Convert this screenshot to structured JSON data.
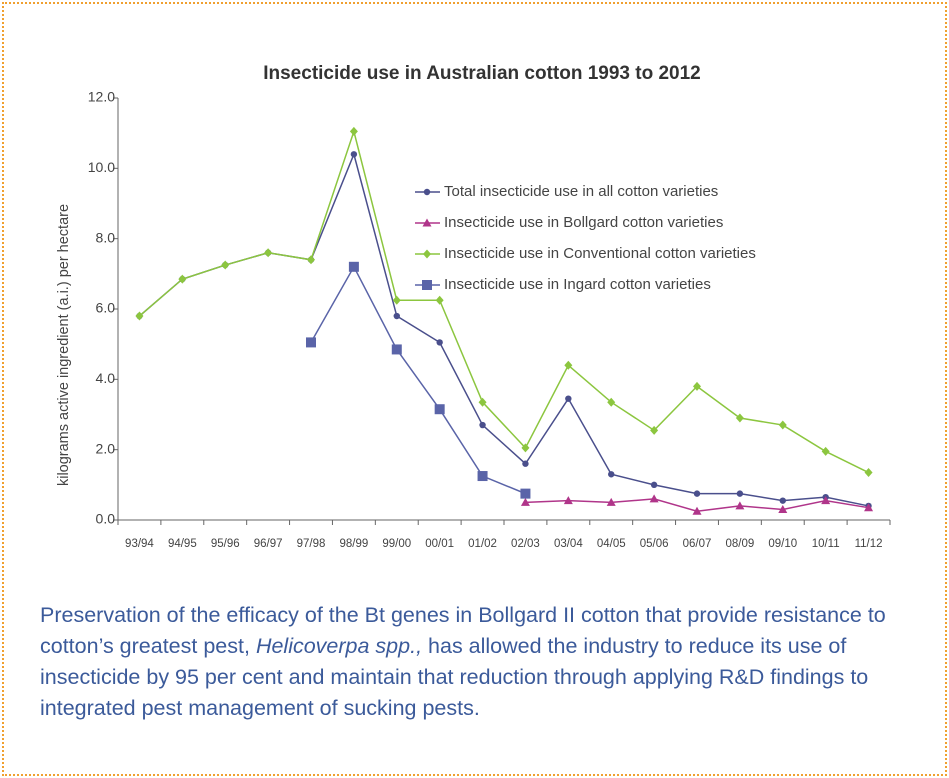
{
  "chart_data": {
    "type": "line",
    "title": "Insecticide use in Australian cotton 1993 to 2012",
    "ylabel": "kilograms active ingredient (a.i.) per hectare",
    "categories": [
      "93/94",
      "94/95",
      "95/96",
      "96/97",
      "97/98",
      "98/99",
      "99/00",
      "00/01",
      "01/02",
      "02/03",
      "03/04",
      "04/05",
      "05/06",
      "06/07",
      "08/09",
      "09/10",
      "10/11",
      "11/12"
    ],
    "ylim": [
      0,
      12
    ],
    "yticks": [
      {
        "value": 0,
        "label": "0.0"
      },
      {
        "value": 2,
        "label": "2.0"
      },
      {
        "value": 4,
        "label": "4.0"
      },
      {
        "value": 6,
        "label": "6.0"
      },
      {
        "value": 8,
        "label": "8.0"
      },
      {
        "value": 10,
        "label": "10.0"
      },
      {
        "value": 12,
        "label": "12.0"
      }
    ],
    "legend": "upper right",
    "series": [
      {
        "name": "Total insecticide use in all cotton varieties",
        "color": "#4a4f8c",
        "marker": "circle",
        "values": [
          5.8,
          6.85,
          7.25,
          7.6,
          7.4,
          10.4,
          5.8,
          5.05,
          2.7,
          1.6,
          3.45,
          1.3,
          1.0,
          0.75,
          0.75,
          0.55,
          0.65,
          0.4
        ]
      },
      {
        "name": "Insecticide use in Bollgard cotton varieties",
        "color": "#b0358a",
        "marker": "triangle",
        "values": [
          null,
          null,
          null,
          null,
          null,
          null,
          null,
          null,
          null,
          0.5,
          0.55,
          0.5,
          0.6,
          0.25,
          0.4,
          0.3,
          0.55,
          0.35
        ]
      },
      {
        "name": "Insecticide use in Conventional cotton varieties",
        "color": "#8cc63f",
        "marker": "diamond",
        "values": [
          5.8,
          6.85,
          7.25,
          7.6,
          7.4,
          11.05,
          6.25,
          6.25,
          3.35,
          2.05,
          4.4,
          3.35,
          2.55,
          3.8,
          2.9,
          2.7,
          1.95,
          1.35
        ]
      },
      {
        "name": "Insecticide use in Ingard cotton varieties",
        "color": "#5a64a8",
        "marker": "square",
        "values": [
          null,
          null,
          null,
          null,
          5.05,
          7.2,
          4.85,
          3.15,
          1.25,
          0.75,
          null,
          null,
          null,
          null,
          null,
          null,
          null,
          null
        ]
      }
    ]
  },
  "caption": [
    "Preservation of the efficacy of the Bt genes in Bollgard II cotton that provide resistance to cotton’s greatest pest, ",
    "Helicoverpa spp.,",
    " has allowed the industry to reduce its use of insecticide by 95 per cent and maintain that reduction through applying R&D findings to integrated pest management of sucking pests."
  ]
}
